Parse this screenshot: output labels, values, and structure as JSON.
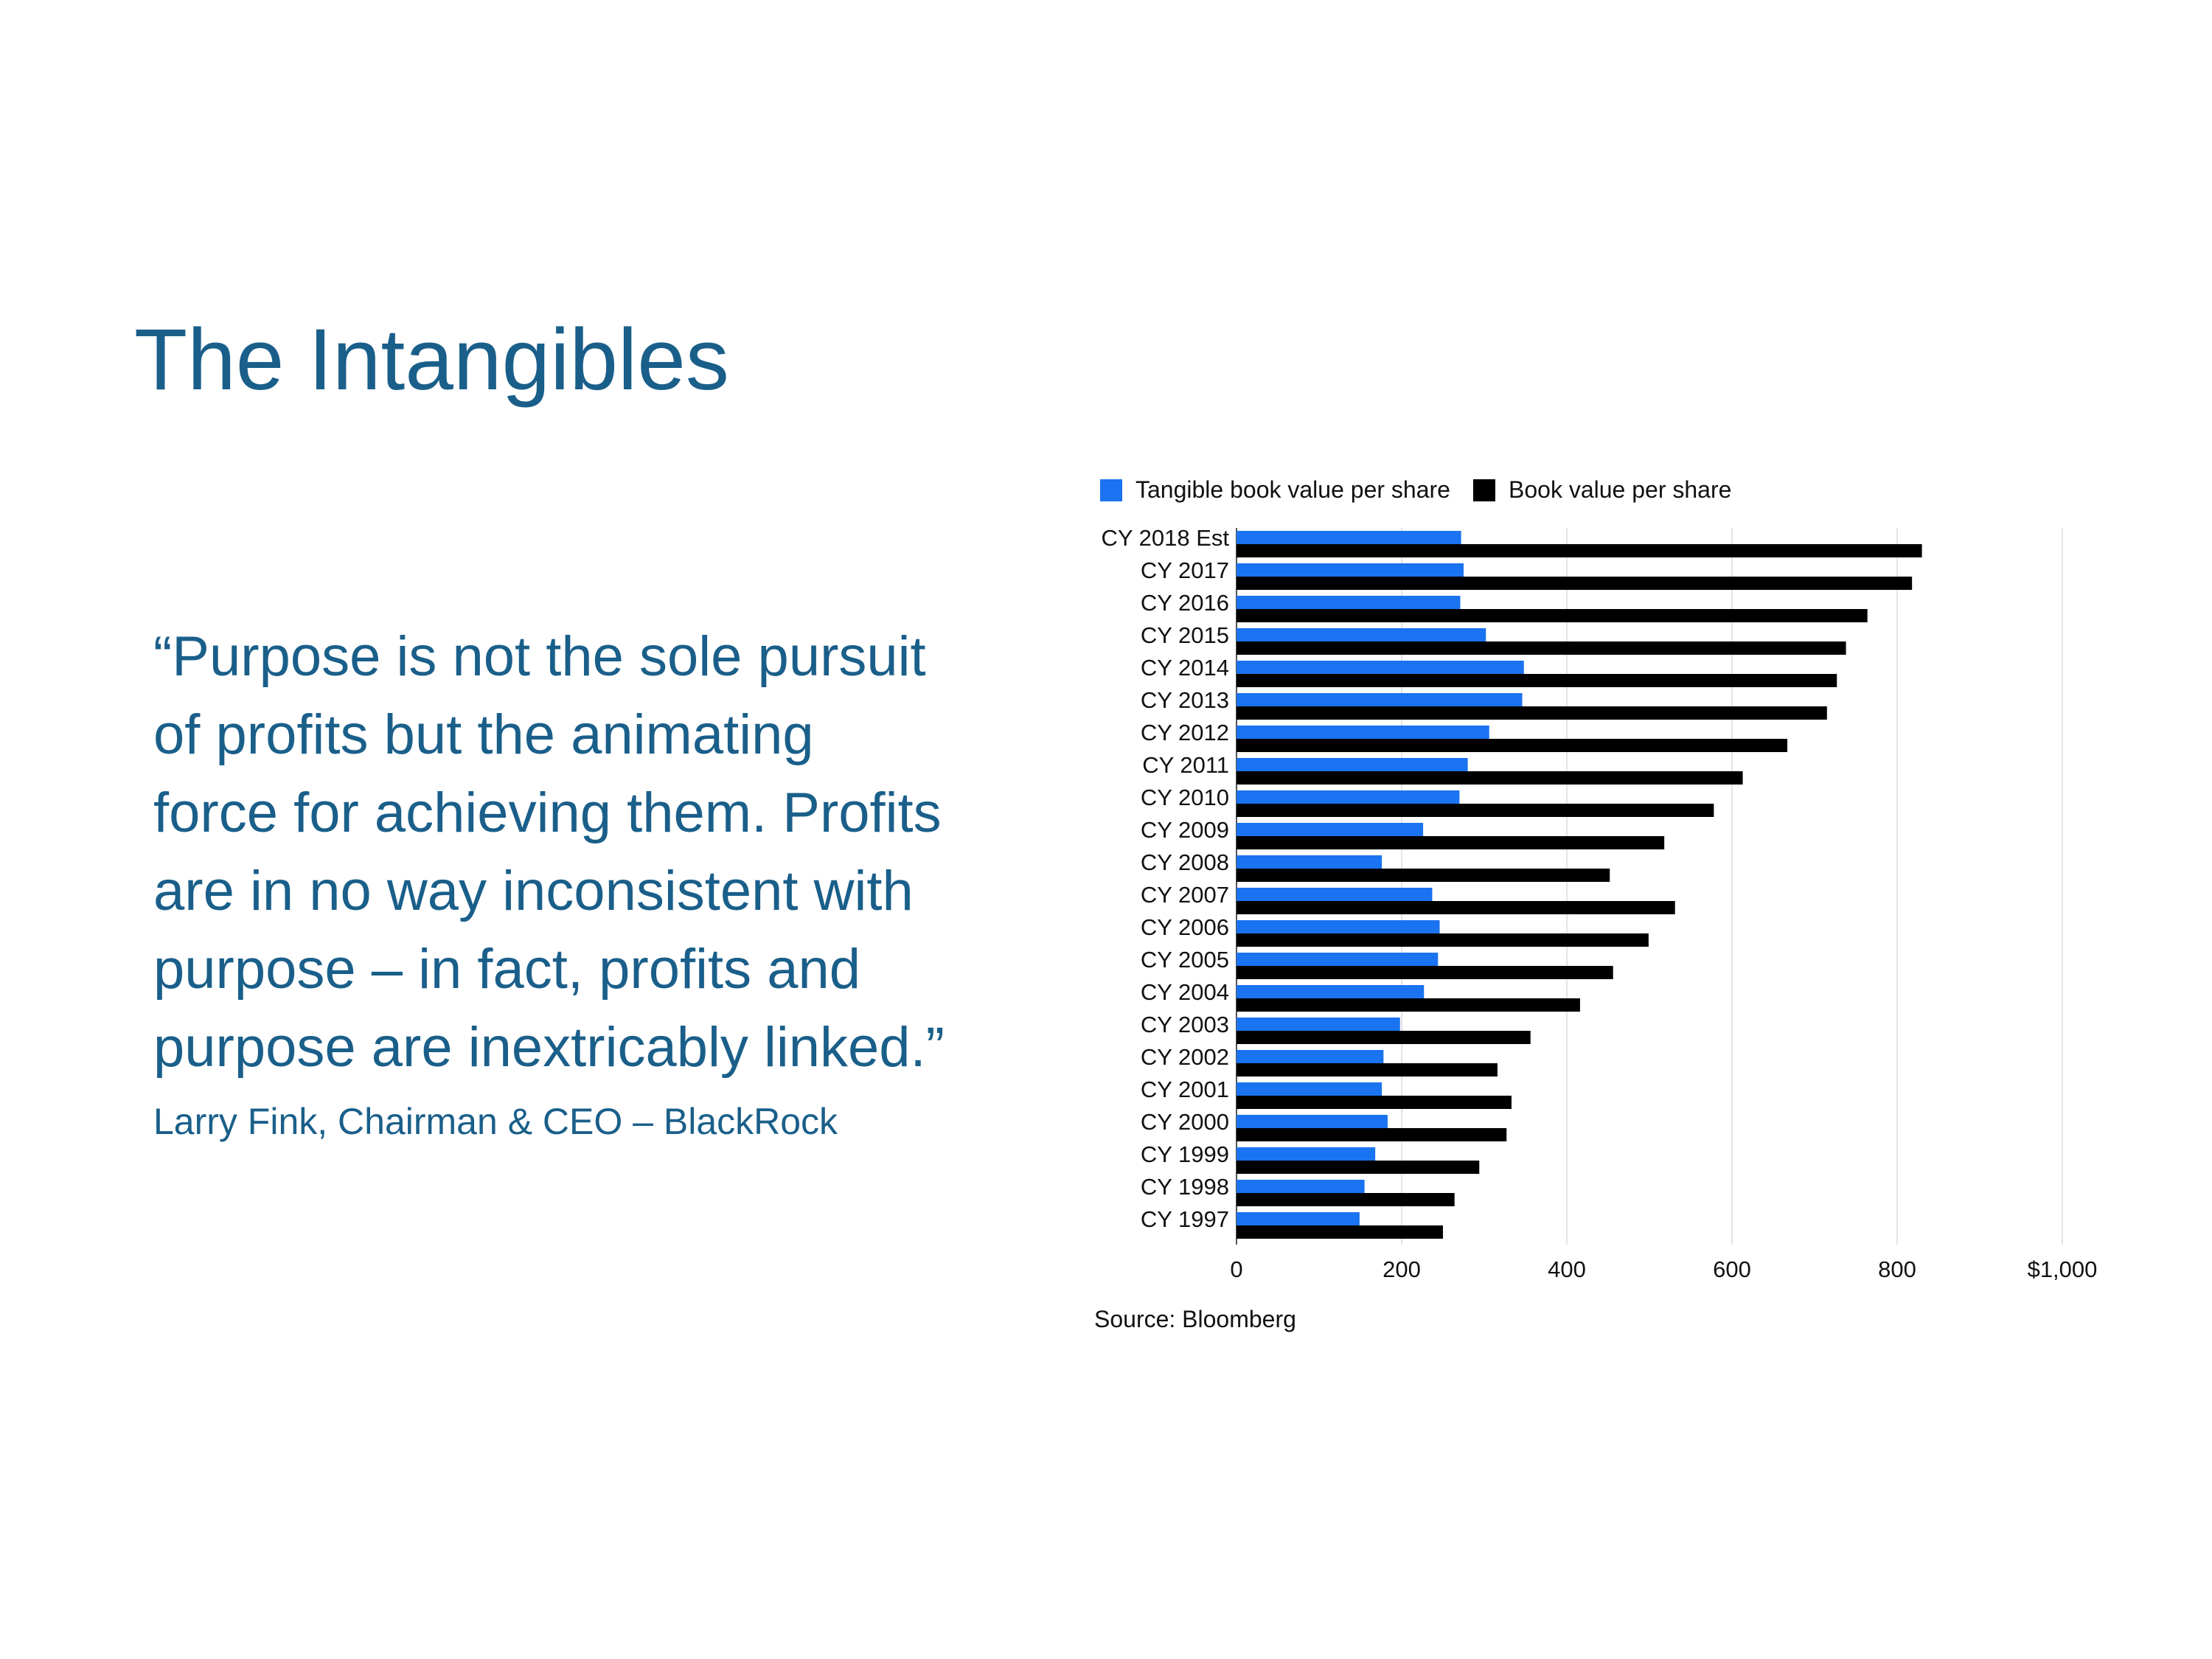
{
  "slide": {
    "title": "The Intangibles",
    "quote_lines": [
      "“Purpose is not the sole pursuit",
      "of profits but the animating",
      "force for achieving them. Profits",
      "are in no way inconsistent with",
      "purpose – in fact, profits and",
      "purpose are inextricably linked.”"
    ],
    "attribution": "Larry Fink, Chairman & CEO – BlackRock",
    "colors": {
      "text": "#1a5f8a"
    }
  },
  "chart_data": {
    "type": "bar",
    "orientation": "horizontal",
    "categories": [
      "CY 2018 Est",
      "CY 2017",
      "CY 2016",
      "CY 2015",
      "CY 2014",
      "CY 2013",
      "CY 2012",
      "CY 2011",
      "CY 2010",
      "CY 2009",
      "CY 2008",
      "CY 2007",
      "CY 2006",
      "CY 2005",
      "CY 2004",
      "CY 2003",
      "CY 2002",
      "CY 2001",
      "CY 2000",
      "CY 1999",
      "CY 1998",
      "CY 1997"
    ],
    "series": [
      {
        "name": "Tangible book value per share",
        "color": "#1a73f0",
        "values": [
          272,
          275,
          271,
          302,
          348,
          346,
          306,
          280,
          270,
          226,
          176,
          237,
          246,
          244,
          227,
          198,
          178,
          176,
          183,
          168,
          155,
          149
        ]
      },
      {
        "name": "Book value per share",
        "color": "#000000",
        "values": [
          830,
          818,
          764,
          738,
          727,
          715,
          667,
          613,
          578,
          518,
          452,
          531,
          499,
          456,
          416,
          356,
          316,
          333,
          327,
          294,
          264,
          250
        ]
      }
    ],
    "x_ticks": [
      "0",
      "200",
      "400",
      "600",
      "800",
      "$1,000"
    ],
    "xlim": [
      0,
      1000
    ],
    "grid": "vertical",
    "legend_position": "top-left",
    "source": "Source: Bloomberg"
  }
}
